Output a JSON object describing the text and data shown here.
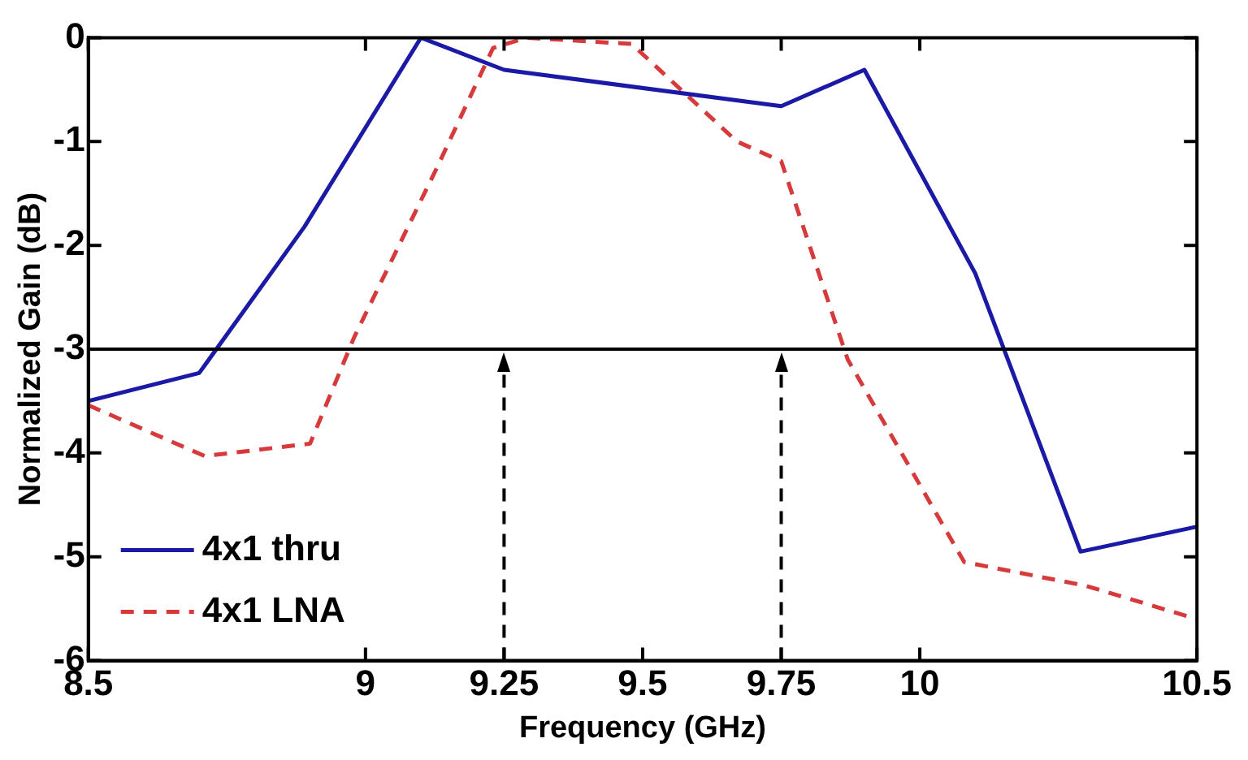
{
  "chart_data": {
    "type": "line",
    "xlabel": "Frequency (GHz)",
    "ylabel": "Normalized Gain (dB)",
    "xlim": [
      8.5,
      10.5
    ],
    "xticks": [
      8.5,
      9,
      9.25,
      9.5,
      9.75,
      10,
      10.5
    ],
    "ylim": [
      -6,
      0
    ],
    "yticks": [
      -6,
      -5,
      -4,
      -3,
      -2,
      -1,
      0
    ],
    "grid": false,
    "legend": "bottom left",
    "marker": "none",
    "series": [
      {
        "name": "4x1 thru",
        "color": "#1a1aa6",
        "line_style": "solid",
        "x": [
          8.5,
          8.7,
          8.89,
          9.1,
          9.25,
          9.75,
          9.9,
          10.1,
          10.29,
          10.5
        ],
        "values": [
          -3.5,
          -3.23,
          -1.82,
          0,
          -0.31,
          -0.66,
          -0.31,
          -2.27,
          -4.95,
          -4.71
        ]
      },
      {
        "name": "4x1 LNA",
        "color": "#d63a3a",
        "line_style": "dashed",
        "x": [
          8.5,
          8.71,
          8.9,
          8.98,
          9.13,
          9.23,
          9.29,
          9.48,
          9.67,
          9.75,
          9.87,
          10.08,
          10.3,
          10.5
        ],
        "values": [
          -3.54,
          -4.03,
          -3.91,
          -2.88,
          -1.24,
          -0.1,
          0,
          -0.06,
          -1.0,
          -1.19,
          -3.1,
          -5.05,
          -5.28,
          -5.6
        ]
      }
    ],
    "ref_lines": [
      {
        "axis": "y",
        "value": -3,
        "color": "#000000",
        "line_style": "solid"
      },
      {
        "axis": "x",
        "value": 9.25,
        "color": "#000000",
        "line_style": "dashed"
      },
      {
        "axis": "x",
        "value": 9.75,
        "color": "#000000",
        "line_style": "dashed"
      }
    ]
  }
}
